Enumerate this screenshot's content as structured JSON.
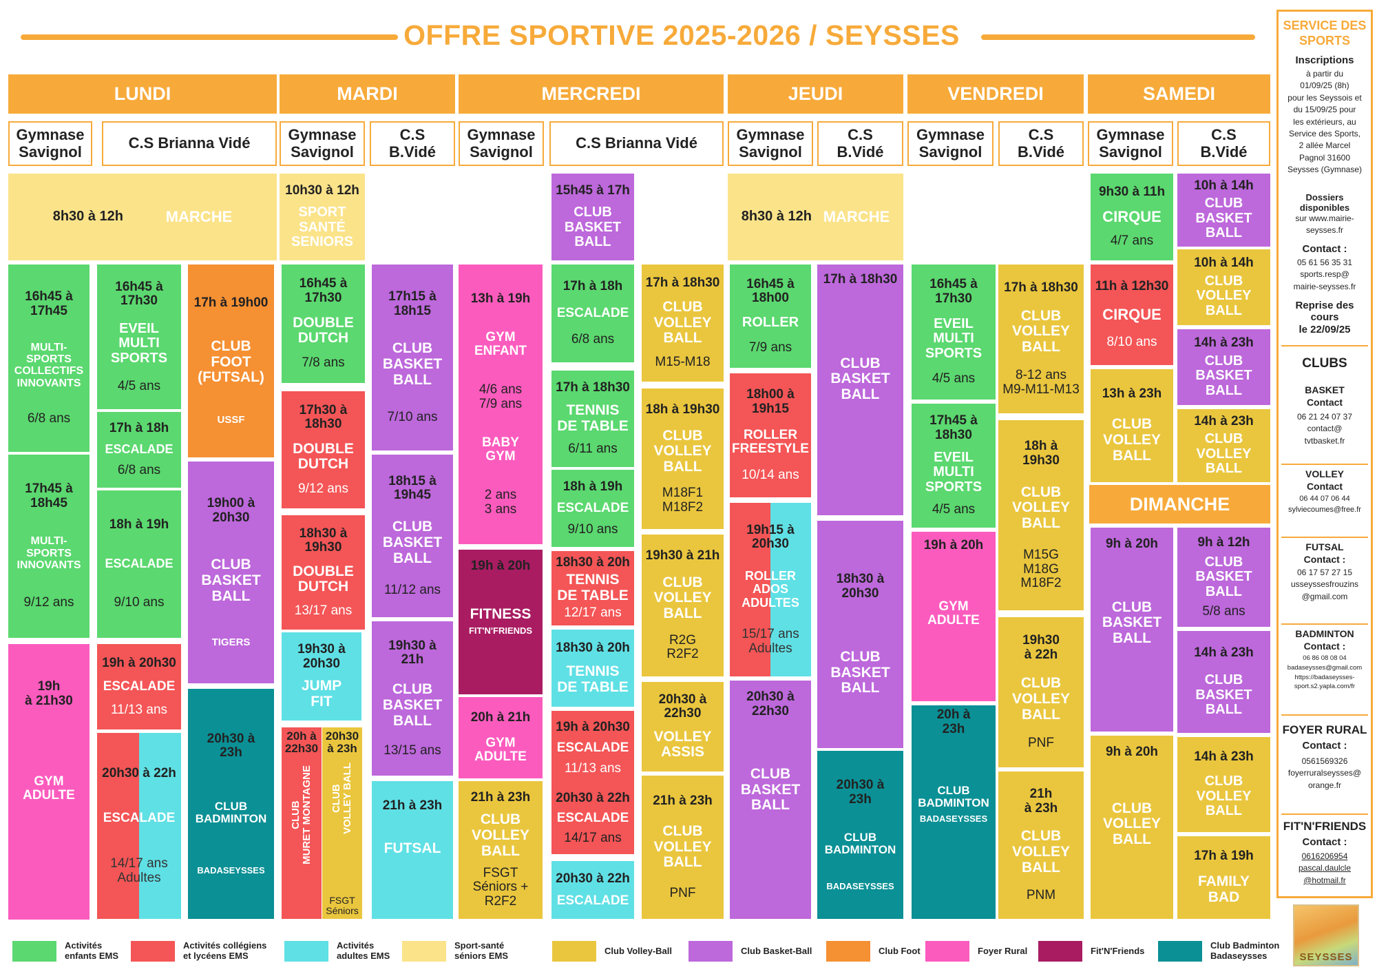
{
  "title": "OFFRE SPORTIVE 2025-2026 / SEYSSES",
  "colors": {
    "orange_accent": "#F7AA3A",
    "green_enfants": "#5BD86F",
    "red_colleges": "#F45556",
    "cyan_adultes": "#5FE0E5",
    "yellow_seniors": "#FBE38A",
    "volley": "#EAC63E",
    "basket": "#BD68DB",
    "foot": "#F59033",
    "foyer": "#FC5BBE",
    "fitnfriends": "#A91C62",
    "badminton": "#0B9095"
  },
  "days": {
    "lundi": "LUNDI",
    "mardi": "MARDI",
    "mercredi": "MERCREDI",
    "jeudi": "JEUDI",
    "vendredi": "VENDREDI",
    "samedi": "SAMEDI",
    "dimanche": "DIMANCHE"
  },
  "venues": {
    "gymnase": "Gymnase\nSavignol",
    "cs_full": "C.S Brianna Vidé",
    "cs_short": "C.S\nB.Vidé"
  },
  "blocks": {
    "lun_marche": {
      "time": "8h30 à 12h",
      "activity": "MARCHE"
    },
    "mar_sport_sante": {
      "time": "10h30 à 12h",
      "activity": "SPORT\nSANTÉ\nSENIORS"
    },
    "mer_basket_1": {
      "time": "15h45 à 17h",
      "activity": "CLUB\nBASKET\nBALL"
    },
    "jeu_marche": {
      "time": "8h30 à 12h",
      "activity": "MARCHE"
    },
    "sam_cirque_1": {
      "time": "9h30 à 11h",
      "activity": "CIRQUE",
      "age": "4/7 ans"
    },
    "sam_basket_1": {
      "time": "10h à 14h",
      "activity": "CLUB\nBASKET\nBALL"
    },
    "lun_multi_1": {
      "time": "16h45 à\n17h45",
      "activity": "MULTI-\nSPORTS\nCOLLECTIFS\nINNOVANTS",
      "age": "6/8 ans"
    },
    "lun_multi_2": {
      "time": "17h45 à\n18h45",
      "activity": "MULTI-\nSPORTS\nINNOVANTS",
      "age": "9/12 ans"
    },
    "lun_gym": {
      "time": "19h\nà 21h30",
      "activity": "GYM\nADULTE"
    },
    "lun_eveil": {
      "time": "16h45 à\n17h30",
      "activity": "EVEIL\nMULTI\nSPORTS",
      "age": "4/5 ans"
    },
    "lun_esc_1": {
      "time": "17h à 18h",
      "activity": "ESCALADE",
      "age": "6/8 ans"
    },
    "lun_esc_2": {
      "time": "18h à 19h",
      "activity": "ESCALADE",
      "age": "9/10 ans"
    },
    "lun_esc_3": {
      "time": "19h à 20h30",
      "activity": "ESCALADE",
      "age": "11/13 ans"
    },
    "lun_esc_4": {
      "time": "20h30 à 22h",
      "activity": "ESCALADE",
      "age": "14/17 ans\nAdultes"
    },
    "lun_foot": {
      "time": "17h à 19h00",
      "activity": "CLUB\nFOOT\n(FUTSAL)",
      "club": "USSF"
    },
    "lun_basket": {
      "time": "19h00 à\n20h30",
      "activity": "CLUB\nBASKET\nBALL",
      "club": "TIGERS"
    },
    "lun_bad": {
      "time": "20h30 à\n23h",
      "activity": "CLUB\nBADMINTON",
      "club": "BADASEYSSES"
    },
    "mar_dd_1": {
      "time": "16h45 à\n17h30",
      "activity": "DOUBLE\nDUTCH",
      "age": "7/8 ans"
    },
    "mar_dd_2": {
      "time": "17h30 à\n18h30",
      "activity": "DOUBLE\nDUTCH",
      "age": "9/12 ans"
    },
    "mar_dd_3": {
      "time": "18h30 à\n19h30",
      "activity": "DOUBLE\nDUTCH",
      "age": "13/17 ans"
    },
    "mar_jump": {
      "time": "19h30 à\n20h30",
      "activity": "JUMP\nFIT"
    },
    "mar_muret": {
      "time": "20h à\n22h30",
      "activity": "CLUB\nMURET MONTAGNE"
    },
    "mar_volley": {
      "time": "20h30\nà 23h",
      "activity": "CLUB\nVOLLEY BALL",
      "club": "FSGT\nSéniors"
    },
    "mar_bb_1": {
      "time": "17h15 à\n18h15",
      "activity": "CLUB\nBASKET\nBALL",
      "age": "7/10 ans"
    },
    "mar_bb_2": {
      "time": "18h15 à\n19h45",
      "activity": "CLUB\nBASKET\nBALL",
      "age": "11/12 ans"
    },
    "mar_bb_3": {
      "time": "19h30 à\n21h",
      "activity": "CLUB\nBASKET\nBALL",
      "age": "13/15 ans"
    },
    "mar_futsal": {
      "time": "21h à 23h",
      "activity": "FUTSAL"
    },
    "mer_gym_enfant": {
      "time": "13h à 19h",
      "activity": "GYM\nENFANT",
      "age": "4/6 ans\n7/9 ans",
      "activity2": "BABY\nGYM",
      "age2": "2 ans\n3 ans"
    },
    "mer_fitness": {
      "time": "19h à 20h",
      "activity": "FITNESS",
      "club": "FIT'N'FRIENDS"
    },
    "mer_gym_adulte": {
      "time": "20h à 21h",
      "activity": "GYM\nADULTE"
    },
    "mer_volley_fsgt": {
      "time": "21h à 23h",
      "activity": "CLUB\nVOLLEY\nBALL",
      "club": "FSGT\nSéniors +\nR2F2"
    },
    "mer_esc_1": {
      "time": "17h à 18h",
      "activity": "ESCALADE",
      "age": "6/8 ans"
    },
    "mer_tt_1": {
      "time": "17h à 18h30",
      "activity": "TENNIS\nDE TABLE",
      "age": "6/11 ans"
    },
    "mer_esc_2": {
      "time": "18h à 19h",
      "activity": "ESCALADE",
      "age": "9/10 ans"
    },
    "mer_tt_2": {
      "time": "18h30 à 20h",
      "activity": "TENNIS\nDE TABLE",
      "age": "12/17 ans"
    },
    "mer_tt_3": {
      "time": "18h30 à 20h",
      "activity": "TENNIS\nDE TABLE"
    },
    "mer_esc_3": {
      "time": "19h à 20h30",
      "activity": "ESCALADE",
      "age": "11/13 ans"
    },
    "mer_esc_4": {
      "time": "20h30 à 22h",
      "activity": "ESCALADE",
      "age": "14/17 ans"
    },
    "mer_esc_5": {
      "time": "20h30 à 22h",
      "activity": "ESCALADE"
    },
    "mer_cv_1": {
      "time": "17h à 18h30",
      "activity": "CLUB\nVOLLEY\nBALL",
      "age": "M15-M18"
    },
    "mer_cv_2": {
      "time": "18h à 19h30",
      "activity": "CLUB\nVOLLEY\nBALL",
      "age": "M18F1\nM18F2"
    },
    "mer_cv_3": {
      "time": "19h30 à 21h",
      "activity": "CLUB\nVOLLEY\nBALL",
      "age": "R2G\nR2F2"
    },
    "mer_cv_4": {
      "time": "20h30 à\n22h30",
      "activity": "VOLLEY\nASSIS"
    },
    "mer_cv_5": {
      "time": "21h à 23h",
      "activity": "CLUB\nVOLLEY\nBALL",
      "age": "PNF"
    },
    "jeu_roller_1": {
      "time": "16h45 à\n18h00",
      "activity": "ROLLER",
      "age": "7/9 ans"
    },
    "jeu_roller_2": {
      "time": "18h00 à\n19h15",
      "activity": "ROLLER\nFREESTYLE",
      "age": "10/14 ans"
    },
    "jeu_roller_3": {
      "time": "19h15 à\n20h30",
      "activity": "ROLLER\nADOS\nADULTES",
      "age": "15/17 ans\nAdultes"
    },
    "jeu_basket_g": {
      "time": "20h30 à\n22h30",
      "activity": "CLUB\nBASKET\nBALL"
    },
    "jeu_basket_1": {
      "time": "17h à 18h30",
      "activity": "CLUB\nBASKET\nBALL"
    },
    "jeu_basket_2": {
      "time": "18h30 à\n20h30",
      "activity": "CLUB\nBASKET\nBALL"
    },
    "jeu_bad": {
      "time": "20h30 à\n23h",
      "activity": "CLUB\nBADMINTON",
      "club": "BADASEYSSES"
    },
    "ven_eveil_1": {
      "time": "16h45 à\n17h30",
      "activity": "EVEIL\nMULTI\nSPORTS",
      "age": "4/5 ans"
    },
    "ven_eveil_2": {
      "time": "17h45 à\n18h30",
      "activity": "EVEIL\nMULTI\nSPORTS",
      "age": "4/5 ans"
    },
    "ven_gym": {
      "time": "19h à 20h",
      "activity": "GYM\nADULTE"
    },
    "ven_bad": {
      "time": "20h à\n23h",
      "activity": "CLUB\nBADMINTON",
      "club": "BADASEYSSES"
    },
    "ven_cv_1": {
      "time": "17h à 18h30",
      "activity": "CLUB\nVOLLEY\nBALL",
      "age": "8-12 ans\nM9-M11-M13"
    },
    "ven_cv_2": {
      "time": "18h à\n19h30",
      "activity": "CLUB\nVOLLEY\nBALL",
      "age": "M15G\nM18G\nM18F2"
    },
    "ven_cv_3": {
      "time": "19h30\nà 22h",
      "activity": "CLUB\nVOLLEY\nBALL",
      "age": "PNF"
    },
    "ven_cv_4": {
      "time": "21h\nà 23h",
      "activity": "CLUB\nVOLLEY\nBALL",
      "age": "PNM"
    },
    "sam_cirque_2": {
      "time": "11h à 12h30",
      "activity": "CIRQUE",
      "age": "8/10 ans"
    },
    "sam_volley_g": {
      "time": "13h à 23h",
      "activity": "CLUB\nVOLLEY\nBALL"
    },
    "sam_volley_1": {
      "time": "10h à 14h",
      "activity": "CLUB\nVOLLEY\nBALL"
    },
    "sam_basket_2": {
      "time": "14h à 23h",
      "activity": "CLUB\nBASKET\nBALL"
    },
    "sam_volley_2": {
      "time": "14h à 23h",
      "activity": "CLUB\nVOLLEY\nBALL"
    },
    "dim_basket_g": {
      "time": "9h à 20h",
      "activity": "CLUB\nBASKET\nBALL"
    },
    "dim_volley_g": {
      "time": "9h à 20h",
      "activity": "CLUB\nVOLLEY\nBALL"
    },
    "dim_basket_1": {
      "time": "9h à 12h",
      "activity": "CLUB\nBASKET\nBALL",
      "age": "5/8 ans"
    },
    "dim_basket_2": {
      "time": "14h à 23h",
      "activity": "CLUB\nBASKET\nBALL"
    },
    "dim_volley": {
      "time": "14h à 23h",
      "activity": "CLUB\nVOLLEY\nBALL"
    },
    "dim_family": {
      "time": "17h à 19h",
      "activity": "FAMILY\nBAD"
    }
  },
  "sidebar": {
    "service_title": "SERVICE DES\nSPORTS",
    "inscriptions_title": "Inscriptions",
    "inscriptions_text": "à partir du\n01/09/25 (8h)\npour les Seyssois et\ndu 15/09/25 pour\nles extérieurs, au\nService des Sports,\n2 allée Marcel\nPagnol 31600\nSeysses (Gymnase)",
    "dossiers_title": "Dossiers\ndisponibles",
    "dossiers_text": "sur www.mairie-\nseysses.fr",
    "contact_label": "Contact :",
    "contact_text": "05 61 56 35 31\nsports.resp@\nmairie-seysses.fr",
    "reprise": "Reprise des\ncours\nle 22/09/25",
    "clubs_title": "CLUBS",
    "basket_title": "BASKET",
    "basket_contact": "Contact",
    "basket_text": "06 21 24 07 37\ncontact@\ntvtbasket.fr",
    "volley_title": "VOLLEY",
    "volley_contact": "Contact",
    "volley_text": "06 44 07 06 44\nsylviecoumes@free.fr",
    "futsal_title": "FUTSAL",
    "futsal_contact": "Contact :",
    "futsal_text": "06 17 57 27 15\nusseyssesfrouzins\n@gmail.com",
    "badminton_title": "BADMINTON",
    "badminton_contact": "Contact :",
    "badminton_text": "06 86 08 08 04\nbadaseysses@gmail.com\nhttps://badaseysses-\nsport.s2.yapla.com/fr",
    "foyer_title": "FOYER RURAL",
    "foyer_contact": "Contact :",
    "foyer_text": "0561569326\nfoyerruralseysses@\norange.fr",
    "fit_title": "FIT'N'FRIENDS",
    "fit_contact": "Contact :",
    "fit_text": "0616206954\npascal.daulcle\n@hotmail.fr",
    "logo_text": "SEYSSES"
  },
  "legend": [
    {
      "label": "Activités\nenfants EMS",
      "color": "#5BD86F"
    },
    {
      "label": "Activités collégiens\net lycéens EMS",
      "color": "#F45556"
    },
    {
      "label": "Activités\nadultes EMS",
      "color": "#5FE0E5"
    },
    {
      "label": "Sport-santé\nséniors EMS",
      "color": "#FBE38A"
    },
    {
      "label": "Club Volley-Ball",
      "color": "#EAC63E"
    },
    {
      "label": "Club Basket-Ball",
      "color": "#BD68DB"
    },
    {
      "label": "Club Foot",
      "color": "#F59033"
    },
    {
      "label": "Foyer Rural",
      "color": "#FC5BBE"
    },
    {
      "label": "Fit'N'Friends",
      "color": "#A91C62"
    },
    {
      "label": "Club Badminton\nBadaseysses",
      "color": "#0B9095"
    }
  ]
}
